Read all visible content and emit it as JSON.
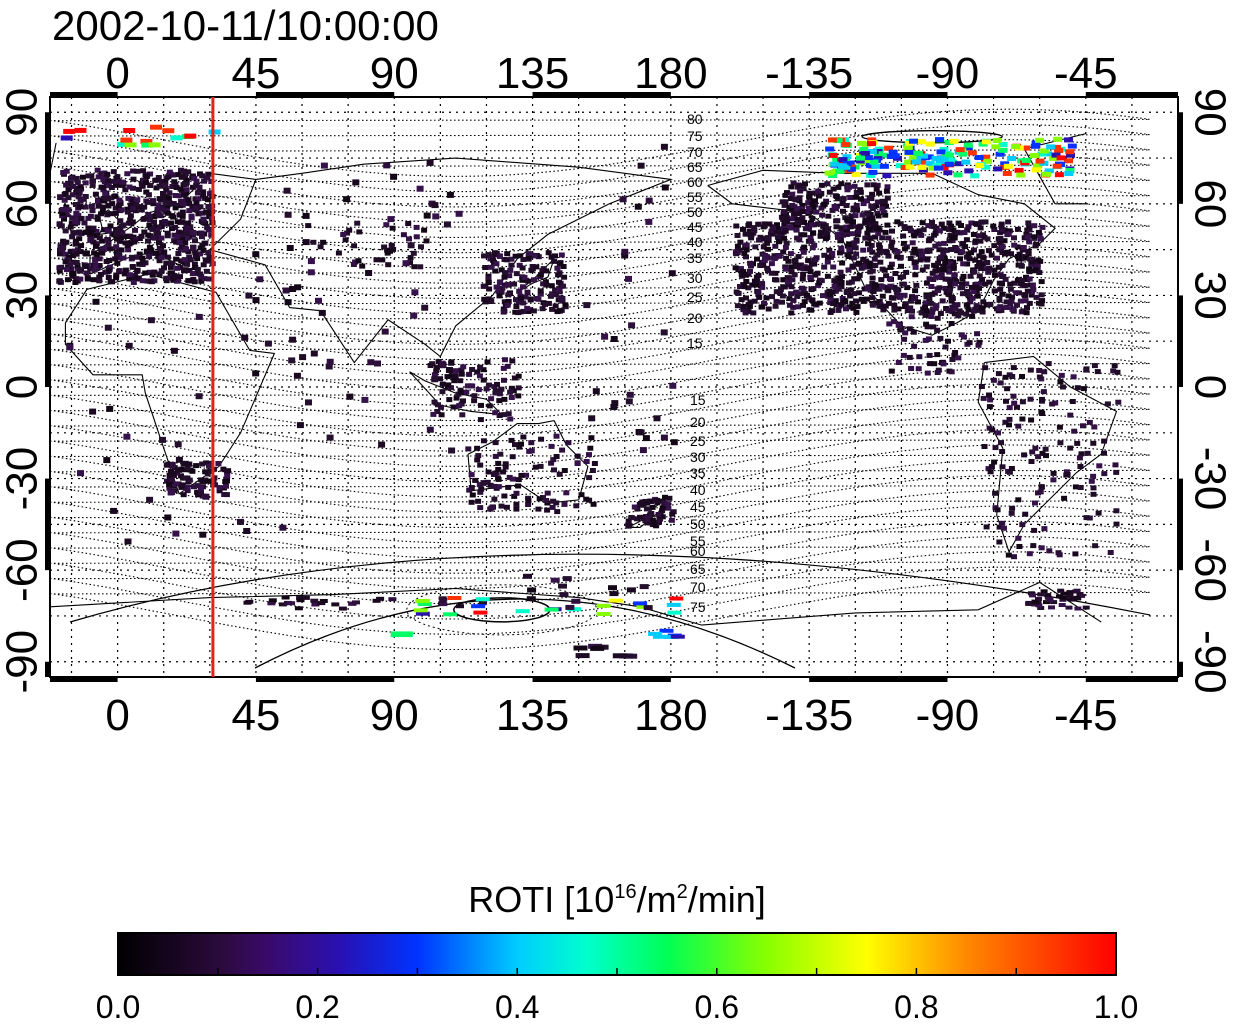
{
  "title": "2002-10-11/10:00:00",
  "map": {
    "lon_ticks_top": [
      "0",
      "45",
      "90",
      "135",
      "180",
      "-135",
      "-90",
      "-45"
    ],
    "lon_ticks_bottom": [
      "0",
      "45",
      "90",
      "135",
      "180",
      "-135",
      "-90",
      "-45"
    ],
    "lat_ticks_left": [
      "90",
      "60",
      "30",
      "0",
      "-30",
      "-60",
      "-90"
    ],
    "lat_ticks_right": [
      "90",
      "60",
      "30",
      "0",
      "-30",
      "-60",
      "-90"
    ],
    "lon_range": [
      -22,
      345
    ],
    "lat_range": [
      -95,
      95
    ],
    "grid": "dotted",
    "marker_longitude": 31,
    "marker_color": "#e8201a",
    "contour_labels_north": [
      "80",
      "75",
      "70",
      "65",
      "60",
      "55",
      "50",
      "45",
      "40",
      "35",
      "30",
      "25",
      "20",
      "15"
    ],
    "contour_labels_south": [
      "15",
      "20",
      "25",
      "30",
      "35",
      "40",
      "45",
      "50",
      "55",
      "60",
      "65",
      "70",
      "75"
    ]
  },
  "colorbar": {
    "label_main": "ROTI  [10",
    "label_sup1": "16",
    "label_mid": "/m",
    "label_sup2": "2",
    "label_end": "/min]",
    "ticks": [
      "0.0",
      "0.2",
      "0.4",
      "0.6",
      "0.8",
      "1.0"
    ],
    "range": [
      0.0,
      1.0
    ],
    "colormap": [
      "#000000",
      "#3a0a5a",
      "#2a0a9a",
      "#0033ff",
      "#00ccff",
      "#00ff66",
      "#88ff00",
      "#ffff00",
      "#ff6600",
      "#ff0000"
    ]
  }
}
